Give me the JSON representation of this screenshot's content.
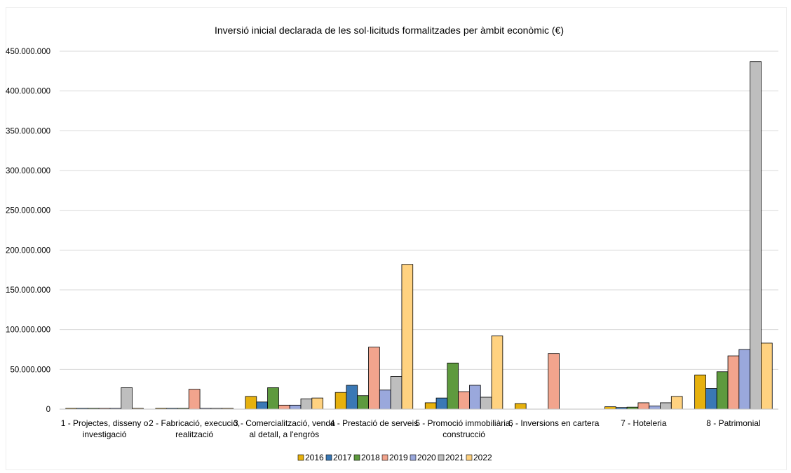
{
  "chart_data": {
    "type": "bar",
    "title": "Inversió  inicial declarada  de les sol·licituds formalitzades  per  àmbit econòmic (€)",
    "xlabel": "",
    "ylabel": "",
    "ylim": [
      0,
      450000000
    ],
    "yticks": [
      0,
      50000000,
      100000000,
      150000000,
      200000000,
      250000000,
      300000000,
      350000000,
      400000000,
      450000000
    ],
    "ytick_labels": [
      "0",
      "50.000.000",
      "100.000.000",
      "150.000.000",
      "200.000.000",
      "250.000.000",
      "300.000.000",
      "350.000.000",
      "400.000.000",
      "450.000.000"
    ],
    "grid": true,
    "legend_position": "bottom",
    "categories": [
      [
        "1 - Projectes, disseny o",
        "investigació"
      ],
      [
        "2 - Fabricació, execució,",
        "realització"
      ],
      [
        "3 - Comercialització, venda",
        "al detall, a l'engròs"
      ],
      [
        "4 - Prestació de serveis"
      ],
      [
        "5 - Promoció immobiliària,",
        "construcció"
      ],
      [
        "6 - Inversions en cartera"
      ],
      [
        "7 - Hoteleria"
      ],
      [
        "8 - Patrimonial"
      ]
    ],
    "series": [
      {
        "name": "2016",
        "color": "#E6B10E",
        "values": [
          1000000,
          800000,
          16000000,
          21000000,
          8000000,
          7000000,
          3000000,
          43000000
        ]
      },
      {
        "name": "2017",
        "color": "#3A78B5",
        "values": [
          800000,
          600000,
          9000000,
          30000000,
          14000000,
          0,
          2000000,
          26000000
        ]
      },
      {
        "name": "2018",
        "color": "#5E9A3E",
        "values": [
          700000,
          700000,
          27000000,
          17000000,
          58000000,
          0,
          2500000,
          47000000
        ]
      },
      {
        "name": "2019",
        "color": "#F2A48D",
        "values": [
          500000,
          25000000,
          5000000,
          78000000,
          22000000,
          70000000,
          8000000,
          67000000
        ]
      },
      {
        "name": "2020",
        "color": "#9AA8DC",
        "values": [
          600000,
          500000,
          5000000,
          24000000,
          30000000,
          0,
          4000000,
          75000000
        ]
      },
      {
        "name": "2021",
        "color": "#BEBEBE",
        "values": [
          27000000,
          1000000,
          13000000,
          41000000,
          15000000,
          0,
          8000000,
          437000000
        ]
      },
      {
        "name": "2022",
        "color": "#FFD280",
        "values": [
          1000000,
          900000,
          14000000,
          182000000,
          92000000,
          0,
          16000000,
          83000000
        ]
      }
    ]
  }
}
